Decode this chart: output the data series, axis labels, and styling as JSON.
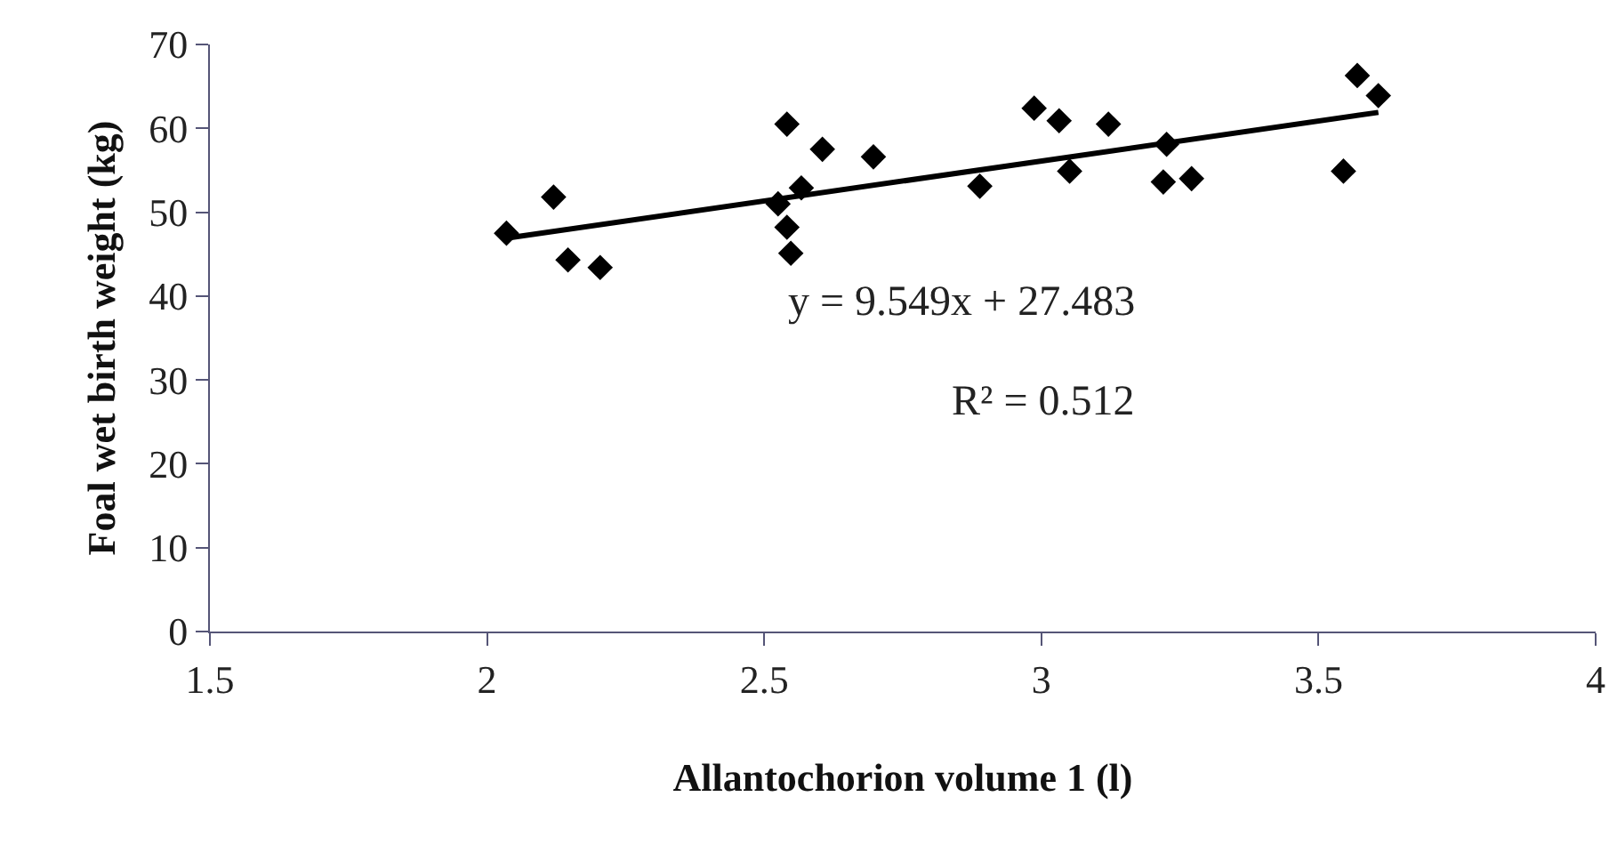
{
  "chart_data": {
    "type": "scatter",
    "xlabel": "Allantochorion volume 1 (l)",
    "ylabel": "Foal wet birth weight (kg)",
    "xlim": [
      1.5,
      4
    ],
    "xticks": [
      1.5,
      2,
      2.5,
      3,
      3.5,
      4
    ],
    "ylim": [
      0,
      70
    ],
    "yticks": [
      0,
      10,
      20,
      30,
      40,
      50,
      60,
      70
    ],
    "marker": "diamond",
    "annotations": [
      "y = 9.549x + 27.483",
      "R² = 0.512"
    ],
    "series": [
      {
        "color": "#000000",
        "x": [
          2.035,
          2.12,
          2.146,
          2.204,
          2.541,
          2.525,
          2.567,
          2.541,
          2.548,
          2.605,
          2.697,
          2.889,
          2.987,
          3.032,
          3.051,
          3.121,
          3.226,
          3.22,
          3.271,
          3.545,
          3.57,
          3.608
        ],
        "values": [
          47.5,
          51.8,
          44.3,
          43.4,
          60.5,
          51.0,
          52.9,
          48.2,
          45.1,
          57.5,
          56.6,
          53.1,
          62.4,
          60.9,
          54.9,
          60.5,
          58.1,
          53.6,
          54.0,
          54.9,
          66.3,
          63.9
        ]
      },
      {
        "type": "line",
        "color": "#000000",
        "marker": "none",
        "x": [
          2.035,
          3.608
        ],
        "values": [
          46.9,
          61.9
        ]
      }
    ]
  }
}
